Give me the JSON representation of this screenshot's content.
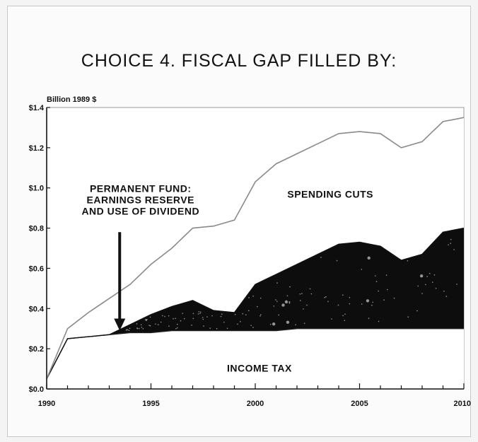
{
  "chart_data": {
    "type": "area",
    "title": "CHOICE 4. FISCAL GAP FILLED BY:",
    "ylabel": "Billion 1989 $",
    "xlabel": "",
    "xlim": [
      1990,
      2010
    ],
    "ylim": [
      0,
      1.4
    ],
    "x_ticks": [
      1990,
      1995,
      2000,
      2005,
      2010
    ],
    "x_tick_labels": [
      "1990",
      "1995",
      "2000",
      "2005",
      "2010"
    ],
    "y_ticks": [
      0,
      0.2,
      0.4,
      0.6,
      0.8,
      1.0,
      1.2,
      1.4
    ],
    "y_tick_labels": [
      "$0.0",
      "$0.2",
      "$0.4",
      "$0.6",
      "$0.8",
      "$1.0",
      "$1.2",
      "$1.4"
    ],
    "grid": false,
    "series": [
      {
        "name": "INCOME TAX",
        "fill": "#ffffff",
        "x": [
          1990,
          1991,
          1992,
          1993,
          1994,
          1995,
          1996,
          1997,
          1998,
          1999,
          2000,
          2001,
          2002,
          2003,
          2004,
          2005,
          2006,
          2007,
          2008,
          2009,
          2010
        ],
        "values": [
          0.05,
          0.25,
          0.26,
          0.27,
          0.28,
          0.28,
          0.29,
          0.29,
          0.29,
          0.29,
          0.29,
          0.29,
          0.3,
          0.3,
          0.3,
          0.3,
          0.3,
          0.3,
          0.3,
          0.3,
          0.3
        ]
      },
      {
        "name": "PERMANENT FUND: EARNINGS RESERVE AND USE OF DIVIDEND",
        "fill": "#0d0d0d",
        "x": [
          1990,
          1991,
          1992,
          1993,
          1994,
          1995,
          1996,
          1997,
          1998,
          1999,
          2000,
          2001,
          2002,
          2003,
          2004,
          2005,
          2006,
          2007,
          2008,
          2009,
          2010
        ],
        "values": [
          0.05,
          0.25,
          0.26,
          0.27,
          0.32,
          0.37,
          0.41,
          0.44,
          0.39,
          0.38,
          0.52,
          0.57,
          0.62,
          0.67,
          0.72,
          0.73,
          0.71,
          0.64,
          0.67,
          0.78,
          0.8
        ]
      },
      {
        "name": "SPENDING CUTS",
        "fill": "#ffffff",
        "x": [
          1990,
          1991,
          1992,
          1993,
          1994,
          1995,
          1996,
          1997,
          1998,
          1999,
          2000,
          2001,
          2002,
          2003,
          2004,
          2005,
          2006,
          2007,
          2008,
          2009,
          2010
        ],
        "values": [
          0.05,
          0.3,
          0.38,
          0.45,
          0.52,
          0.62,
          0.7,
          0.8,
          0.81,
          0.84,
          1.03,
          1.12,
          1.17,
          1.22,
          1.27,
          1.28,
          1.27,
          1.2,
          1.23,
          1.33,
          1.35
        ]
      }
    ],
    "annotations": {
      "spending_cuts": "SPENDING CUTS",
      "income_tax": "INCOME TAX",
      "permanent_fund_lines": [
        "PERMANENT FUND:",
        "EARNINGS RESERVE",
        "AND USE OF DIVIDEND"
      ],
      "arrow_at_year": 1993.5
    }
  }
}
